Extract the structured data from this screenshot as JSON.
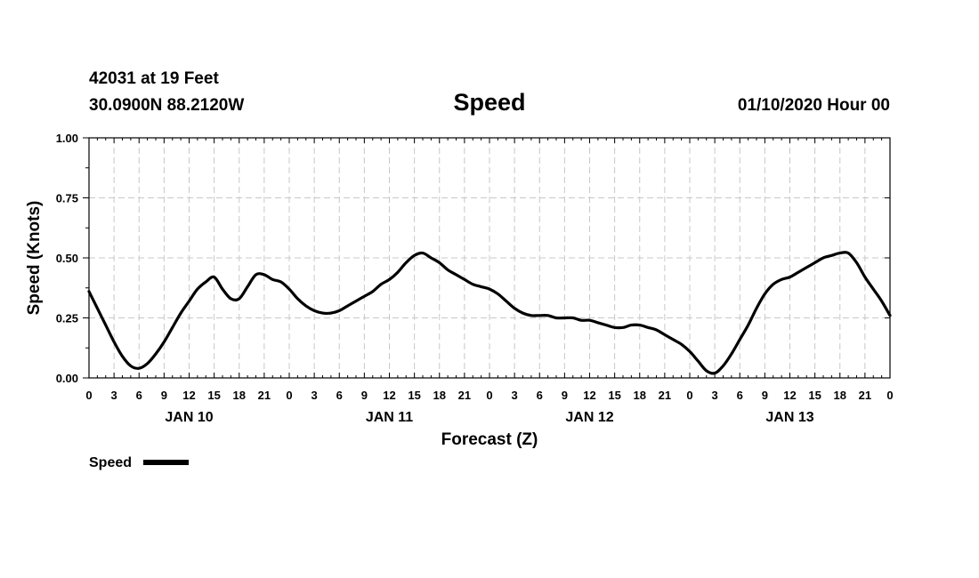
{
  "header": {
    "station": "42031 at 19 Feet",
    "coords": "30.0900N 88.2120W",
    "title": "Speed",
    "datetime": "01/10/2020 Hour 00"
  },
  "chart_data": {
    "type": "line",
    "title": "Speed",
    "xlabel": "Forecast (Z)",
    "ylabel": "Speed (Knots)",
    "ylim": [
      0,
      1.0
    ],
    "y_ticks": [
      "0.00",
      "0.25",
      "0.50",
      "0.75",
      "1.00"
    ],
    "x_range_hours": [
      0,
      96
    ],
    "x_ticks": [
      "0",
      "3",
      "6",
      "9",
      "12",
      "15",
      "18",
      "21",
      "0",
      "3",
      "6",
      "9",
      "12",
      "15",
      "18",
      "21",
      "0",
      "3",
      "6",
      "9",
      "12",
      "15",
      "18",
      "21",
      "0",
      "3",
      "6",
      "9",
      "12",
      "15",
      "18",
      "21",
      "0"
    ],
    "day_labels": [
      {
        "label": "JAN 10",
        "hour": 12
      },
      {
        "label": "JAN 11",
        "hour": 36
      },
      {
        "label": "JAN 12",
        "hour": 60
      },
      {
        "label": "JAN 13",
        "hour": 84
      }
    ],
    "grid": true,
    "legend": {
      "position": "bottom-left",
      "entries": [
        "Speed"
      ]
    },
    "series": [
      {
        "name": "Speed",
        "color": "#000000",
        "x": [
          0,
          1,
          2,
          3,
          4,
          5,
          6,
          7,
          8,
          9,
          10,
          11,
          12,
          13,
          14,
          15,
          16,
          17,
          18,
          19,
          20,
          21,
          22,
          23,
          24,
          25,
          26,
          27,
          28,
          29,
          30,
          31,
          32,
          33,
          34,
          35,
          36,
          37,
          38,
          39,
          40,
          41,
          42,
          43,
          44,
          45,
          46,
          47,
          48,
          49,
          50,
          51,
          52,
          53,
          54,
          55,
          56,
          57,
          58,
          59,
          60,
          61,
          62,
          63,
          64,
          65,
          66,
          67,
          68,
          69,
          70,
          71,
          72,
          73,
          74,
          75,
          76,
          77,
          78,
          79,
          80,
          81,
          82,
          83,
          84,
          85,
          86,
          87,
          88,
          89,
          90,
          91,
          92,
          93,
          94,
          95,
          96
        ],
        "values": [
          0.36,
          0.29,
          0.22,
          0.15,
          0.09,
          0.05,
          0.04,
          0.06,
          0.1,
          0.15,
          0.21,
          0.27,
          0.32,
          0.37,
          0.4,
          0.42,
          0.37,
          0.33,
          0.33,
          0.38,
          0.43,
          0.43,
          0.41,
          0.4,
          0.37,
          0.33,
          0.3,
          0.28,
          0.27,
          0.27,
          0.28,
          0.3,
          0.32,
          0.34,
          0.36,
          0.39,
          0.41,
          0.44,
          0.48,
          0.51,
          0.52,
          0.5,
          0.48,
          0.45,
          0.43,
          0.41,
          0.39,
          0.38,
          0.37,
          0.35,
          0.32,
          0.29,
          0.27,
          0.26,
          0.26,
          0.26,
          0.25,
          0.25,
          0.25,
          0.24,
          0.24,
          0.23,
          0.22,
          0.21,
          0.21,
          0.22,
          0.22,
          0.21,
          0.2,
          0.18,
          0.16,
          0.14,
          0.11,
          0.07,
          0.03,
          0.02,
          0.05,
          0.1,
          0.16,
          0.22,
          0.29,
          0.35,
          0.39,
          0.41,
          0.42,
          0.44,
          0.46,
          0.48,
          0.5,
          0.51,
          0.52,
          0.52,
          0.48,
          0.42,
          0.37,
          0.32,
          0.26
        ]
      }
    ]
  }
}
